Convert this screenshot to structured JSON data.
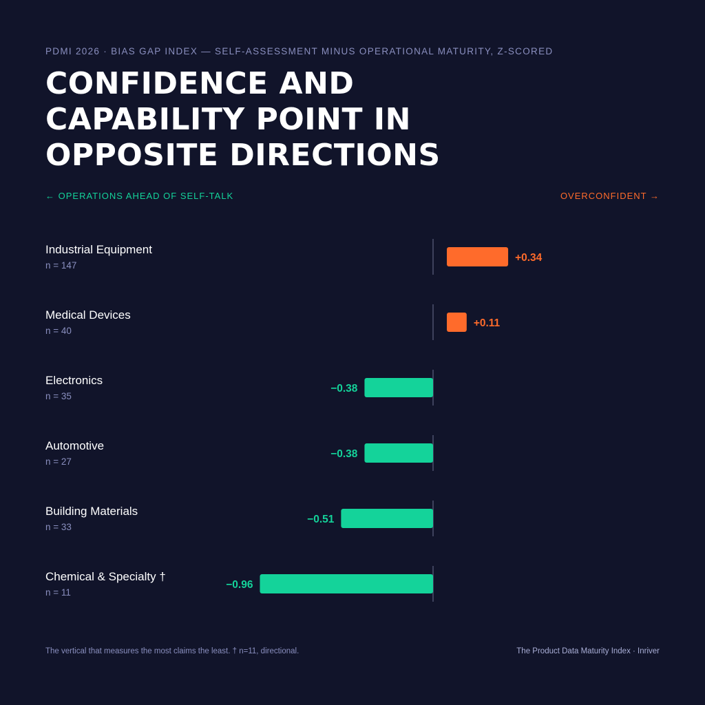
{
  "kicker": "PDMI 2026 · BIAS GAP INDEX — SELF-ASSESSMENT MINUS OPERATIONAL MATURITY, Z-SCORED",
  "headline_lines": [
    "CONFIDENCE AND",
    "CAPABILITY POINT IN",
    "OPPOSITE DIRECTIONS"
  ],
  "axis_labels": {
    "left": "← OPERATIONS AHEAD OF SELF-TALK",
    "right": "OVERCONFIDENT →"
  },
  "colors": {
    "background": "#11142a",
    "positive": "#ff6b2b",
    "negative": "#14d39a",
    "baseline": "#4a4e6a",
    "label": "#ffffff",
    "sublabel": "#8a8fbf"
  },
  "chart_data": {
    "type": "bar",
    "orientation": "horizontal",
    "categories": [
      "Industrial Equipment",
      "Medical Devices",
      "Electronics",
      "Automotive",
      "Building Materials",
      "Chemical & Specialty †"
    ],
    "sample_sizes": [
      "n = 147",
      "n = 40",
      "n = 35",
      "n = 27",
      "n = 33",
      "n = 11"
    ],
    "values": [
      0.34,
      0.11,
      -0.38,
      -0.38,
      -0.51,
      -0.96
    ],
    "value_labels": [
      "+0.34",
      "+0.11",
      "−0.38",
      "−0.38",
      "−0.51",
      "−0.96"
    ],
    "baseline": 0,
    "title": "CONFIDENCE AND CAPABILITY POINT IN OPPOSITE DIRECTIONS",
    "xlabel": "",
    "ylabel": "",
    "grid": false
  },
  "footer": {
    "note": "The vertical that measures the most claims the least. † n=11, directional.",
    "source": "The Product Data Maturity Index · Inriver"
  }
}
